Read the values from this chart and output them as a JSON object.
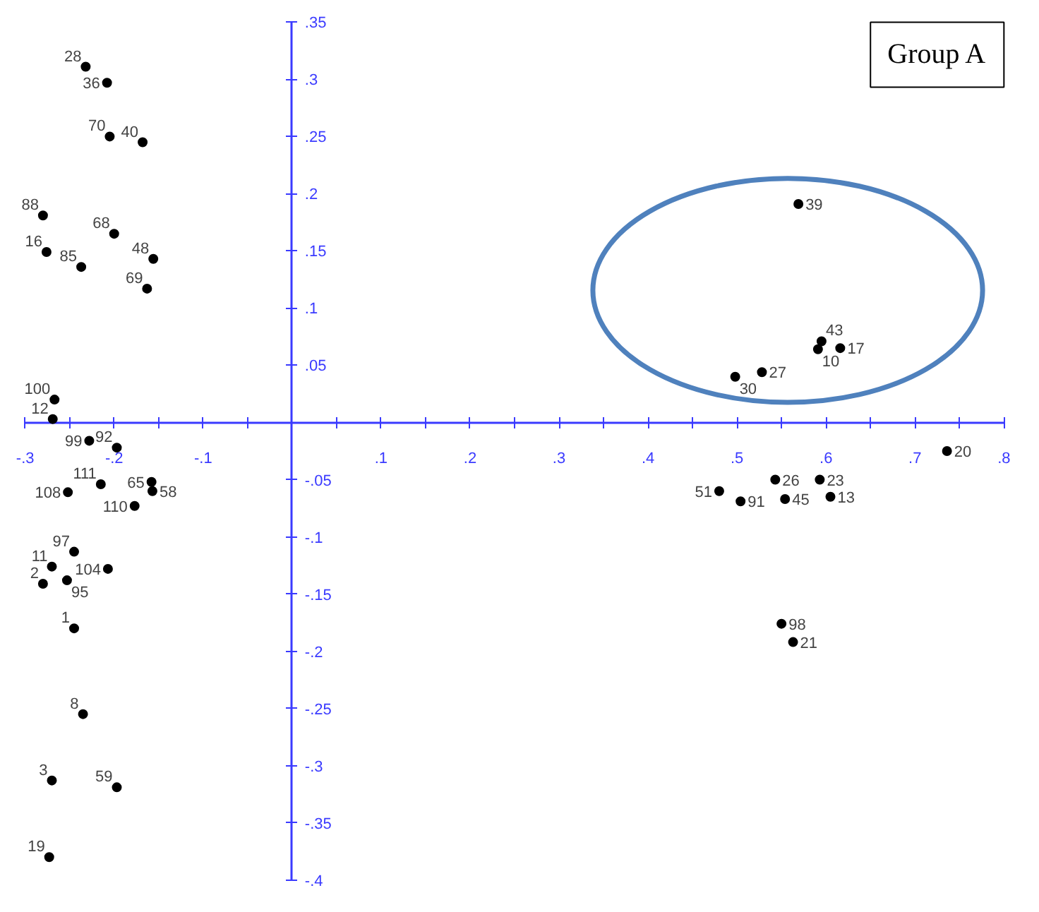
{
  "chart_data": {
    "type": "scatter",
    "marker": "circle",
    "grid": false,
    "x": [
      -0.232,
      -0.208,
      -0.205,
      -0.168,
      -0.28,
      -0.2,
      -0.276,
      -0.237,
      -0.156,
      -0.163,
      -0.267,
      -0.269,
      -0.228,
      -0.197,
      -0.252,
      -0.215,
      -0.158,
      -0.157,
      -0.177,
      -0.245,
      -0.27,
      -0.207,
      -0.28,
      -0.253,
      -0.245,
      -0.235,
      -0.27,
      -0.197,
      -0.273,
      0.569,
      0.595,
      0.591,
      0.616,
      0.498,
      0.528,
      0.736,
      0.48,
      0.504,
      0.543,
      0.554,
      0.593,
      0.605,
      0.55,
      0.563
    ],
    "series": [
      {
        "color": "#000000",
        "values": [
          0.311,
          0.297,
          0.25,
          0.245,
          0.181,
          0.165,
          0.149,
          0.136,
          0.143,
          0.117,
          0.02,
          0.003,
          -0.016,
          -0.022,
          -0.061,
          -0.054,
          -0.052,
          -0.06,
          -0.073,
          -0.113,
          -0.126,
          -0.128,
          -0.141,
          -0.138,
          -0.18,
          -0.255,
          -0.313,
          -0.319,
          -0.38,
          0.191,
          0.071,
          0.064,
          0.065,
          0.04,
          0.044,
          -0.025,
          -0.06,
          -0.069,
          -0.05,
          -0.067,
          -0.05,
          -0.065,
          -0.176,
          -0.192
        ]
      }
    ],
    "xlim": [
      -0.3,
      0.8
    ],
    "ylim": [
      -0.4,
      0.35
    ],
    "xticks": [
      {
        "value": -0.3,
        "label": "-.3"
      },
      {
        "value": -0.25,
        "label": null
      },
      {
        "value": -0.2,
        "label": "-.2"
      },
      {
        "value": -0.15,
        "label": null
      },
      {
        "value": -0.1,
        "label": "-.1"
      },
      {
        "value": -0.05,
        "label": null
      },
      {
        "value": 0.05,
        "label": null
      },
      {
        "value": 0.1,
        "label": ".1"
      },
      {
        "value": 0.15,
        "label": null
      },
      {
        "value": 0.2,
        "label": ".2"
      },
      {
        "value": 0.25,
        "label": null
      },
      {
        "value": 0.3,
        "label": ".3"
      },
      {
        "value": 0.35,
        "label": null
      },
      {
        "value": 0.4,
        "label": ".4"
      },
      {
        "value": 0.45,
        "label": null
      },
      {
        "value": 0.5,
        "label": ".5"
      },
      {
        "value": 0.55,
        "label": null
      },
      {
        "value": 0.6,
        "label": ".6"
      },
      {
        "value": 0.65,
        "label": null
      },
      {
        "value": 0.7,
        "label": ".7"
      },
      {
        "value": 0.75,
        "label": null
      },
      {
        "value": 0.8,
        "label": ".8"
      }
    ],
    "yticks": [
      {
        "value": 0.35,
        "label": ".35"
      },
      {
        "value": 0.3,
        "label": ".3"
      },
      {
        "value": 0.25,
        "label": ".25"
      },
      {
        "value": 0.2,
        "label": ".2"
      },
      {
        "value": 0.15,
        "label": ".15"
      },
      {
        "value": 0.1,
        "label": ".1"
      },
      {
        "value": 0.05,
        "label": ".05"
      },
      {
        "value": -0.05,
        "label": "-.05"
      },
      {
        "value": -0.1,
        "label": "-.1"
      },
      {
        "value": -0.15,
        "label": "-.15"
      },
      {
        "value": -0.2,
        "label": "-.2"
      },
      {
        "value": -0.25,
        "label": "-.25"
      },
      {
        "value": -0.3,
        "label": "-.3"
      },
      {
        "value": -0.35,
        "label": "-.35"
      },
      {
        "value": -0.4,
        "label": "-.4"
      }
    ],
    "annotations": [
      "Group A",
      {
        "text": "28",
        "x": -0.232,
        "y": 0.311
      },
      {
        "text": "36",
        "x": -0.208,
        "y": 0.297
      },
      {
        "text": "70",
        "x": -0.205,
        "y": 0.25
      },
      {
        "text": "40",
        "x": -0.168,
        "y": 0.245
      },
      {
        "text": "88",
        "x": -0.28,
        "y": 0.181
      },
      {
        "text": "68",
        "x": -0.2,
        "y": 0.165
      },
      {
        "text": "16",
        "x": -0.276,
        "y": 0.149
      },
      {
        "text": "85",
        "x": -0.237,
        "y": 0.136
      },
      {
        "text": "48",
        "x": -0.156,
        "y": 0.143
      },
      {
        "text": "69",
        "x": -0.163,
        "y": 0.117
      },
      {
        "text": "100",
        "x": -0.267,
        "y": 0.02
      },
      {
        "text": "12",
        "x": -0.269,
        "y": 0.003
      },
      {
        "text": "99",
        "x": -0.228,
        "y": -0.016
      },
      {
        "text": "92",
        "x": -0.197,
        "y": -0.022
      },
      {
        "text": "108",
        "x": -0.252,
        "y": -0.061
      },
      {
        "text": "111",
        "x": -0.215,
        "y": -0.054
      },
      {
        "text": "65",
        "x": -0.158,
        "y": -0.052
      },
      {
        "text": "58",
        "x": -0.157,
        "y": -0.06
      },
      {
        "text": "110",
        "x": -0.177,
        "y": -0.073
      },
      {
        "text": "97",
        "x": -0.245,
        "y": -0.113
      },
      {
        "text": "11",
        "x": -0.27,
        "y": -0.126
      },
      {
        "text": "104",
        "x": -0.207,
        "y": -0.128
      },
      {
        "text": "2",
        "x": -0.28,
        "y": -0.141
      },
      {
        "text": "95",
        "x": -0.253,
        "y": -0.138
      },
      {
        "text": "1",
        "x": -0.245,
        "y": -0.18
      },
      {
        "text": "8",
        "x": -0.235,
        "y": -0.255
      },
      {
        "text": "3",
        "x": -0.27,
        "y": -0.313
      },
      {
        "text": "59",
        "x": -0.197,
        "y": -0.319
      },
      {
        "text": "19",
        "x": -0.273,
        "y": -0.38
      },
      {
        "text": "39",
        "x": 0.569,
        "y": 0.191
      },
      {
        "text": "43",
        "x": 0.595,
        "y": 0.071
      },
      {
        "text": "10",
        "x": 0.591,
        "y": 0.064
      },
      {
        "text": "17",
        "x": 0.616,
        "y": 0.065
      },
      {
        "text": "30",
        "x": 0.498,
        "y": 0.04
      },
      {
        "text": "27",
        "x": 0.528,
        "y": 0.044
      },
      {
        "text": "20",
        "x": 0.736,
        "y": -0.025
      },
      {
        "text": "51",
        "x": 0.48,
        "y": -0.06
      },
      {
        "text": "91",
        "x": 0.504,
        "y": -0.069
      },
      {
        "text": "26",
        "x": 0.543,
        "y": -0.05
      },
      {
        "text": "45",
        "x": 0.554,
        "y": -0.067
      },
      {
        "text": "23",
        "x": 0.593,
        "y": -0.05
      },
      {
        "text": "13",
        "x": 0.605,
        "y": -0.065
      },
      {
        "text": "98",
        "x": 0.55,
        "y": -0.176
      },
      {
        "text": "21",
        "x": 0.563,
        "y": -0.192
      }
    ]
  }
}
